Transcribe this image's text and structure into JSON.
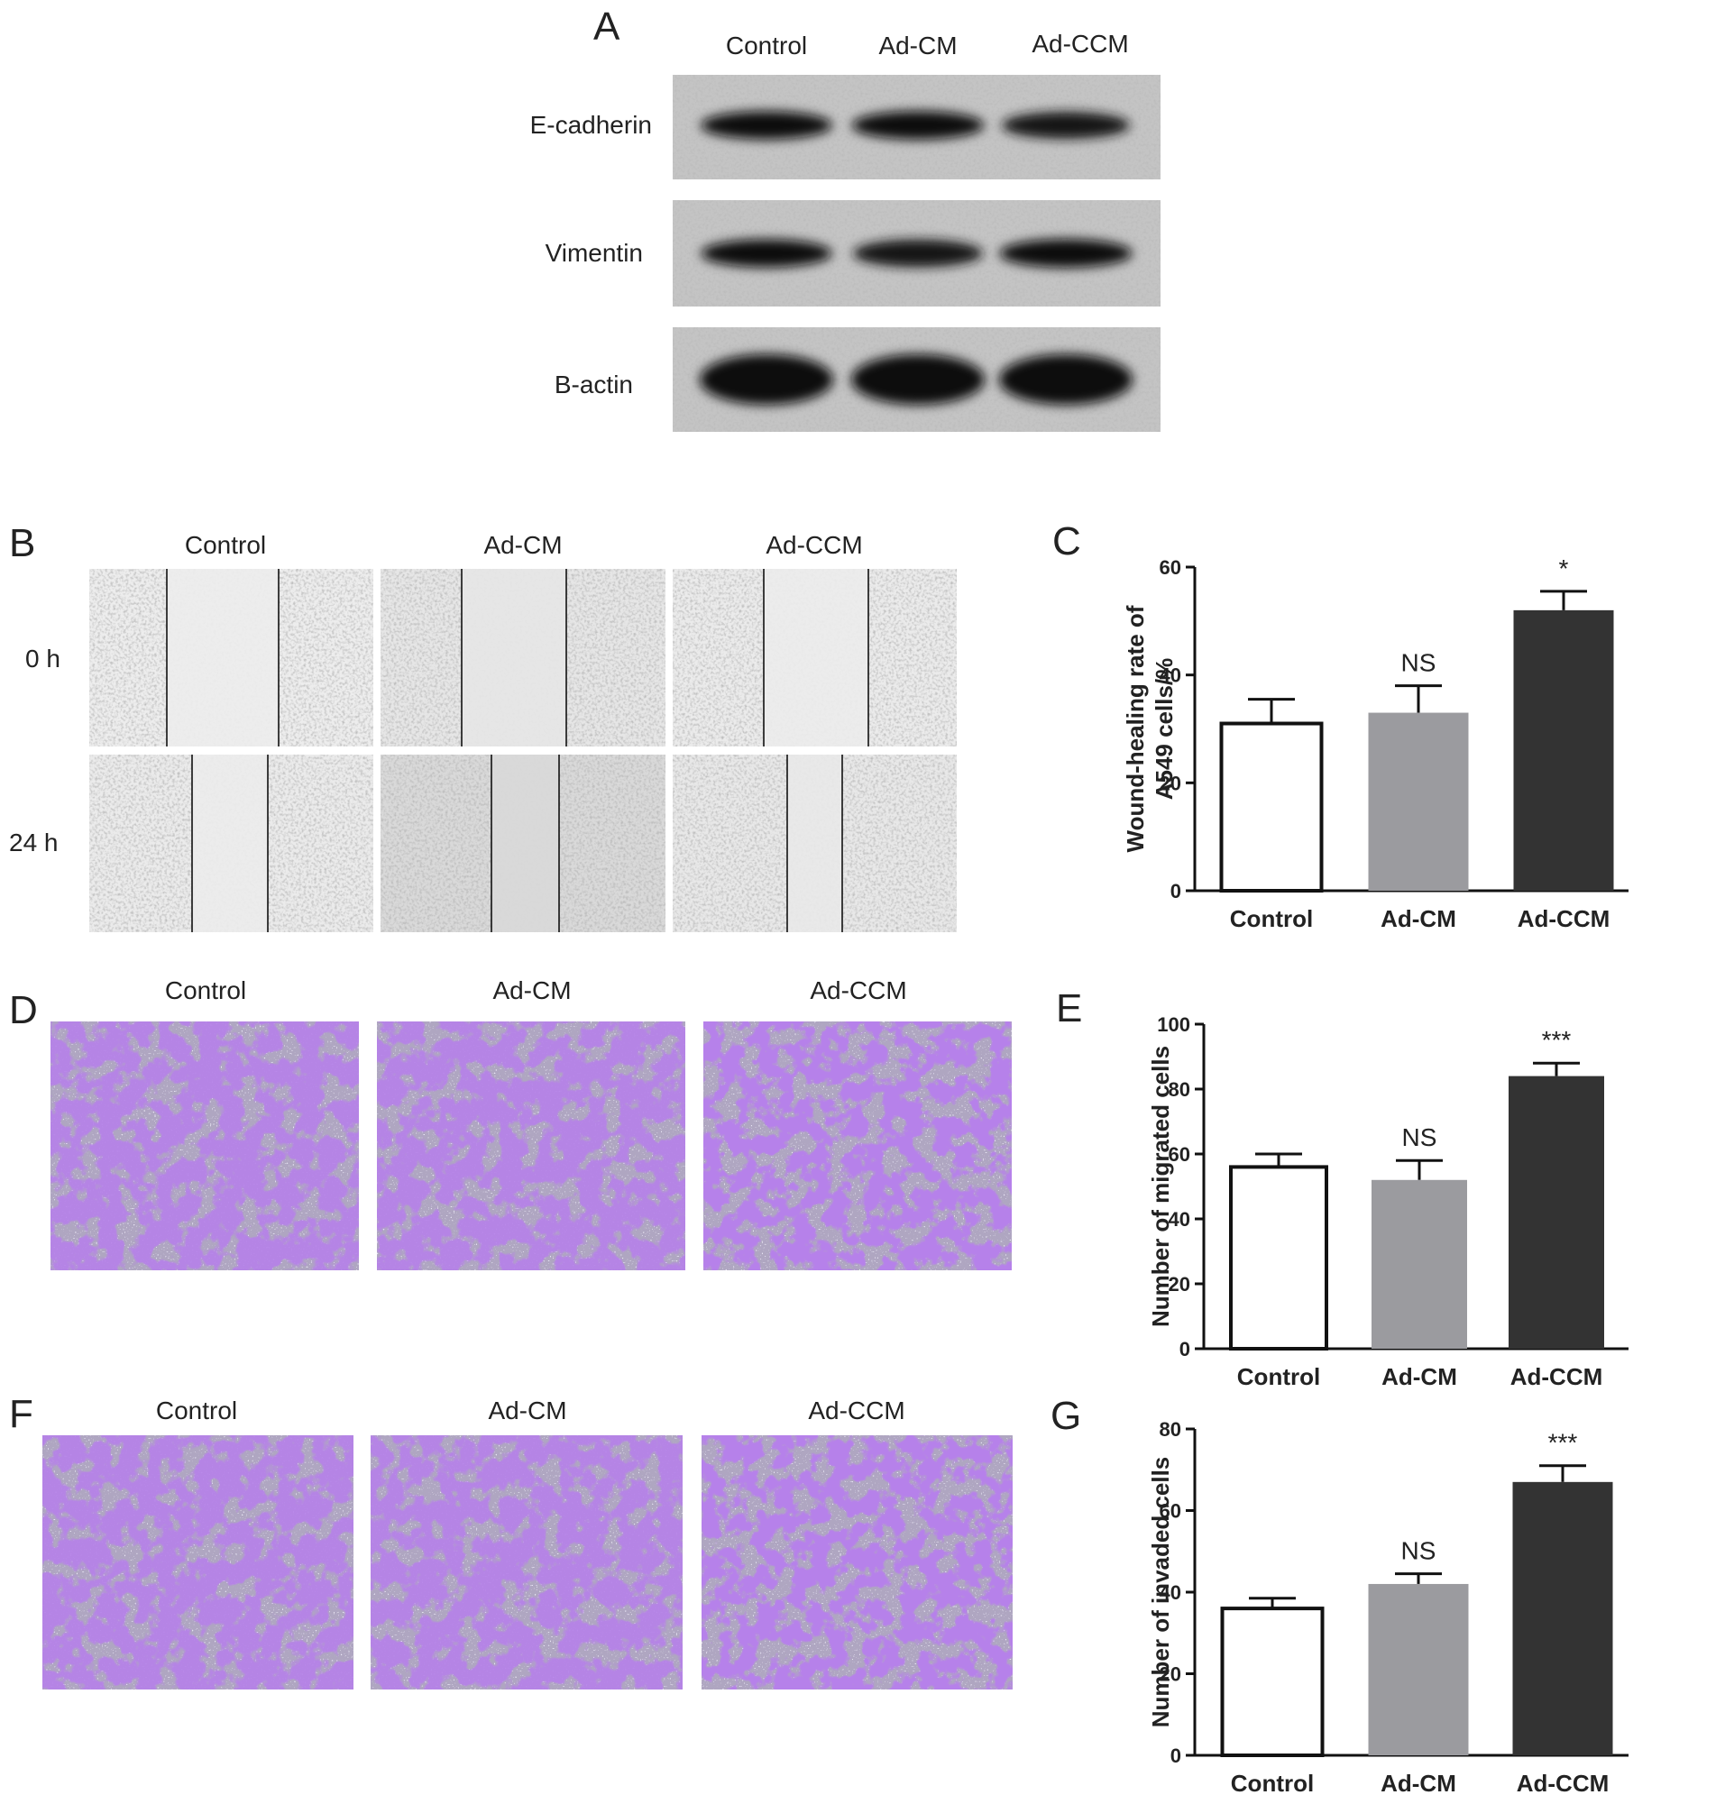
{
  "panels": {
    "A": {
      "letter": "A",
      "lanes": [
        "Control",
        "Ad-CM",
        "Ad-CCM"
      ],
      "rows": [
        {
          "label": "E-cadherin",
          "intensity": [
            0.92,
            0.95,
            0.78
          ]
        },
        {
          "label": "Vimentin",
          "intensity": [
            0.9,
            0.85,
            0.97
          ]
        },
        {
          "label": "B-actin",
          "intensity": [
            1.0,
            1.0,
            1.0
          ]
        }
      ]
    },
    "B": {
      "letter": "B",
      "columns": [
        "Control",
        "Ad-CM",
        "Ad-CCM"
      ],
      "rows": [
        "0 h",
        "24 h"
      ]
    },
    "D": {
      "letter": "D",
      "columns": [
        "Control",
        "Ad-CM",
        "Ad-CCM"
      ]
    },
    "F": {
      "letter": "F",
      "columns": [
        "Control",
        "Ad-CM",
        "Ad-CCM"
      ]
    }
  },
  "chart_data": [
    {
      "panel": "C",
      "type": "bar",
      "ylabel_line1": "Wound-healing rate of",
      "ylabel_line2": "A549 cells/%",
      "categories": [
        "Control",
        "Ad-CM",
        "Ad-CCM"
      ],
      "values": [
        31,
        33,
        52
      ],
      "errors": [
        4.5,
        5,
        3.5
      ],
      "annotations": [
        "",
        "NS",
        "*"
      ],
      "colors": [
        "#ffffff",
        "#9b9b9f",
        "#333333"
      ],
      "ylim": [
        0,
        60
      ],
      "yticks": [
        0,
        20,
        40,
        60
      ]
    },
    {
      "panel": "E",
      "type": "bar",
      "ylabel_line1": "Number of migrated cells",
      "ylabel_line2": "",
      "categories": [
        "Control",
        "Ad-CM",
        "Ad-CCM"
      ],
      "values": [
        56,
        52,
        84
      ],
      "errors": [
        4,
        6,
        4
      ],
      "annotations": [
        "",
        "NS",
        "***"
      ],
      "colors": [
        "#ffffff",
        "#9b9b9f",
        "#333333"
      ],
      "ylim": [
        0,
        100
      ],
      "yticks": [
        0,
        20,
        40,
        60,
        80,
        100
      ]
    },
    {
      "panel": "G",
      "type": "bar",
      "ylabel_line1": "Number of invaded cells",
      "ylabel_line2": "",
      "categories": [
        "Control",
        "Ad-CM",
        "Ad-CCM"
      ],
      "values": [
        36,
        42,
        67
      ],
      "errors": [
        2.5,
        2.5,
        4
      ],
      "annotations": [
        "",
        "NS",
        "***"
      ],
      "colors": [
        "#ffffff",
        "#9b9b9f",
        "#333333"
      ],
      "ylim": [
        0,
        80
      ],
      "yticks": [
        0,
        20,
        40,
        60,
        80
      ]
    }
  ],
  "chart_letters": [
    "C",
    "E",
    "G"
  ]
}
